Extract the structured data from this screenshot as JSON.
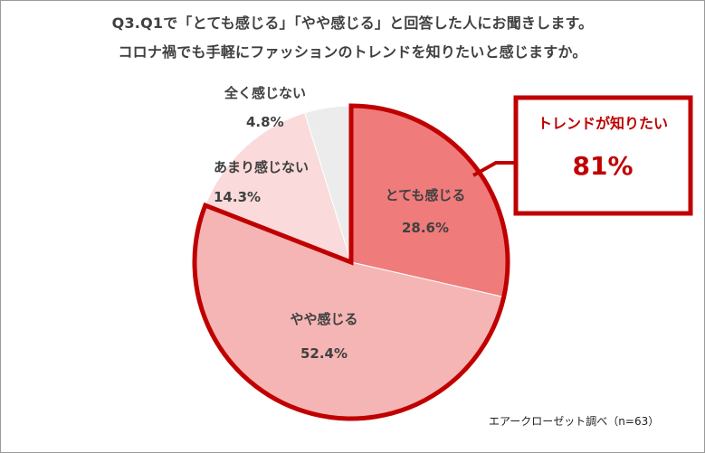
{
  "title_line1": "Q3.Q1で「とても感じる」「やや感じる」と回答した人にお聞きします。",
  "title_line2": "コロナ禍でも手軽にファッションのトレンドを知りたいと感じますか。",
  "source": "エアークローゼット調べ（n=63）",
  "callout": {
    "label": "トレンドが知りたい",
    "value": "81%"
  },
  "colors": {
    "accent": "#c00000",
    "slice_totemo": "#f07b7b",
    "slice_yaya": "#f5b5b5",
    "slice_amari": "#fadadb",
    "slice_mattaku": "#ececec",
    "label_text": "#404040"
  },
  "chart_data": {
    "type": "pie",
    "slices": [
      {
        "label": "とても感じる",
        "value": 28.6,
        "display": "28.6%"
      },
      {
        "label": "やや感じる",
        "value": 52.4,
        "display": "52.4%"
      },
      {
        "label": "あまり感じない",
        "value": 14.3,
        "display": "14.3%"
      },
      {
        "label": "全く感じない",
        "value": 4.8,
        "display": "4.8%"
      }
    ],
    "highlighted": [
      "とても感じる",
      "やや感じる"
    ]
  }
}
